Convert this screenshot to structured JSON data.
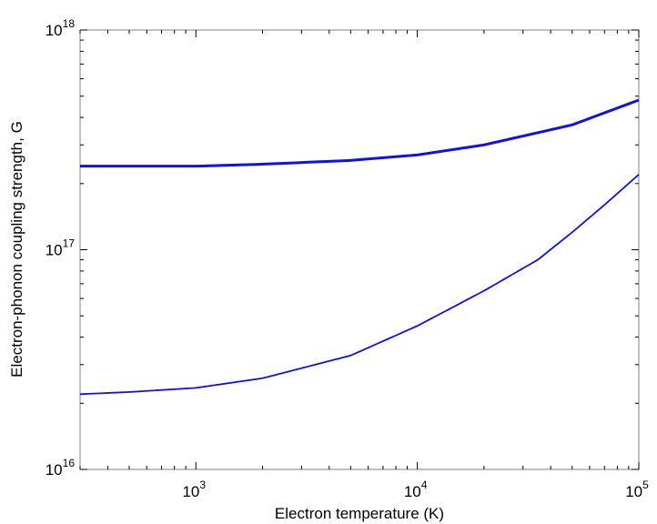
{
  "chart_data": {
    "type": "line",
    "title": "",
    "xlabel": "Electron temperature (K)",
    "ylabel": "Electron-phonon coupling strength, G",
    "xscale": "log",
    "yscale": "log",
    "xlim": [
      300,
      100000
    ],
    "ylim": [
      1e+16,
      1e+18
    ],
    "grid": false,
    "legend": "none",
    "x_ticks": [
      {
        "value": 1000,
        "base": "10",
        "exp": "3"
      },
      {
        "value": 10000,
        "base": "10",
        "exp": "4"
      },
      {
        "value": 100000,
        "base": "10",
        "exp": "5"
      }
    ],
    "y_ticks": [
      {
        "value": 1e+16,
        "base": "10",
        "exp": "16"
      },
      {
        "value": 1e+17,
        "base": "10",
        "exp": "17"
      },
      {
        "value": 1e+18,
        "base": "10",
        "exp": "18"
      }
    ],
    "series": [
      {
        "color": "#1010e8",
        "line_width": 3,
        "x": [
          300,
          1000,
          2000,
          5000,
          10000,
          20000,
          50000,
          100000
        ],
        "y": [
          2.4e+17,
          2.4e+17,
          2.45e+17,
          2.55e+17,
          2.7e+17,
          3e+17,
          3.7e+17,
          4.8e+17
        ]
      },
      {
        "color": "#1010e8",
        "line_width": 1.8,
        "x": [
          300,
          500,
          1000,
          2000,
          5000,
          10000,
          20000,
          35000,
          50000,
          70000,
          100000
        ],
        "y": [
          2.2e+16,
          2.25e+16,
          2.35e+16,
          2.6e+16,
          3.3e+16,
          4.5e+16,
          6.5e+16,
          9e+16,
          1.2e+17,
          1.6e+17,
          2.2e+17
        ]
      }
    ]
  }
}
